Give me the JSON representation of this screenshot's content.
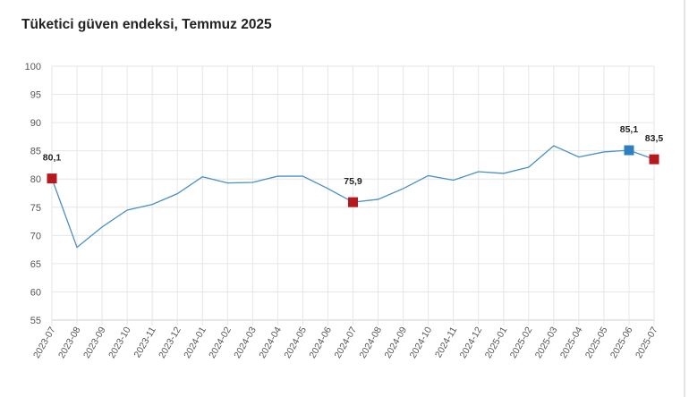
{
  "chart_data": {
    "type": "line",
    "title": "Tüketici güven endeksi, Temmuz 2025",
    "xlabel": "",
    "ylabel": "",
    "ylim": [
      55,
      100
    ],
    "yticks": [
      "55",
      "60",
      "65",
      "70",
      "75",
      "80",
      "85",
      "90",
      "95",
      "100"
    ],
    "grid": true,
    "categories": [
      "2023-07",
      "2023-08",
      "2023-09",
      "2023-10",
      "2023-11",
      "2023-12",
      "2024-01",
      "2024-02",
      "2024-03",
      "2024-04",
      "2024-05",
      "2024-06",
      "2024-07",
      "2024-08",
      "2024-09",
      "2024-10",
      "2024-11",
      "2024-12",
      "2025-01",
      "2025-02",
      "2025-03",
      "2025-04",
      "2025-05",
      "2025-06",
      "2025-07"
    ],
    "values": [
      80.1,
      67.9,
      71.5,
      74.5,
      75.5,
      77.4,
      80.4,
      79.3,
      79.4,
      80.5,
      80.5,
      78.3,
      75.9,
      76.4,
      78.3,
      80.6,
      79.8,
      81.3,
      81.0,
      82.1,
      85.9,
      83.9,
      84.8,
      85.1,
      83.5
    ],
    "line_color": "#4a90c2",
    "markers": [
      {
        "index": 0,
        "label": "80,1",
        "color": "#b5191e"
      },
      {
        "index": 12,
        "label": "75,9",
        "color": "#b5191e"
      },
      {
        "index": 23,
        "label": "85,1",
        "color": "#2e7fbf"
      },
      {
        "index": 24,
        "label": "83,5",
        "color": "#b5191e"
      }
    ]
  }
}
